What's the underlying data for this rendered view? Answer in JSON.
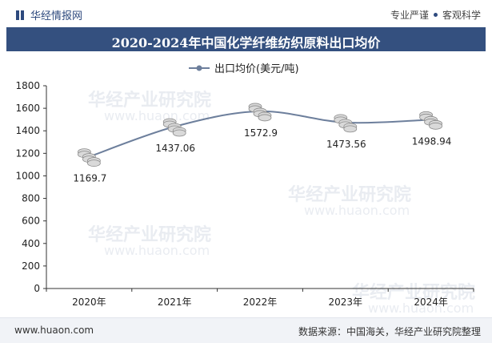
{
  "brand": {
    "name": "华经情报网"
  },
  "tagline": {
    "left": "专业严谨",
    "right": "客观科学"
  },
  "footer": {
    "site": "www.huaon.com",
    "source": "数据来源：中国海关，华经产业研究院整理"
  },
  "watermark": {
    "cn": "华经产业研究院",
    "url": "www.huaon.com"
  },
  "colors": {
    "line": "#6d7f9c",
    "title_bg": "#34507f",
    "coin": "#d9d9d9"
  },
  "chart_data": {
    "type": "line",
    "title": "2020-2024年中国化学纤维纺织原料出口均价",
    "categories": [
      "2020年",
      "2021年",
      "2022年",
      "2023年",
      "2024年"
    ],
    "series": [
      {
        "name": "出口均价(美元/吨)",
        "values": [
          1169.7,
          1437.06,
          1572.9,
          1473.56,
          1498.94
        ]
      }
    ],
    "data_labels": [
      "1169.7",
      "1437.06",
      "1572.9",
      "1473.56",
      "1498.94"
    ],
    "ylim": [
      0,
      1800
    ],
    "yticks": [
      0,
      200,
      400,
      600,
      800,
      1000,
      1200,
      1400,
      1600,
      1800
    ],
    "xlabel": "",
    "ylabel": "",
    "legend": "top-center"
  }
}
